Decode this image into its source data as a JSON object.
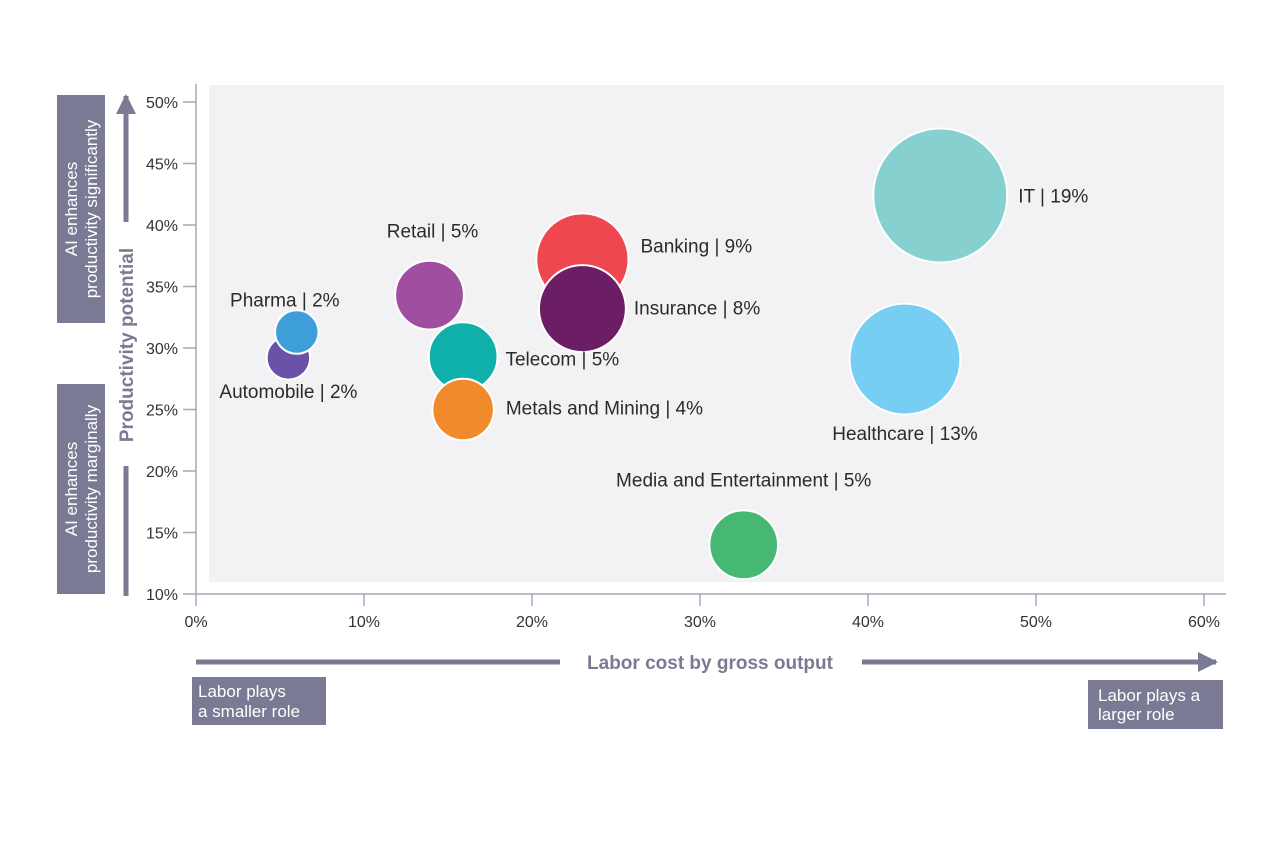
{
  "colors": {
    "plot_bg": "#f2f2f4",
    "axis": "#7b7a94",
    "note_box": "#7b7a94"
  },
  "chart_data": {
    "type": "scatter",
    "xlabel": "Labor cost by gross output",
    "ylabel": "Productivity potential",
    "xlim": [
      0,
      60
    ],
    "ylim": [
      10,
      50
    ],
    "x_ticks": [
      "0%",
      "10%",
      "20%",
      "30%",
      "40%",
      "50%",
      "60%"
    ],
    "y_ticks": [
      "10%",
      "15%",
      "20%",
      "25%",
      "30%",
      "35%",
      "40%",
      "45%",
      "50%"
    ],
    "bubble_size_unit": "percent",
    "points": [
      {
        "label": "Automobile | 2%",
        "x": 5.5,
        "y": 29.2,
        "size": 2,
        "color": "#6a52a8"
      },
      {
        "label": "Pharma | 2%",
        "x": 6.0,
        "y": 31.3,
        "size": 2,
        "color": "#3d9ed9"
      },
      {
        "label": "Retail | 5%",
        "x": 13.9,
        "y": 34.3,
        "size": 5,
        "color": "#a04fa0"
      },
      {
        "label": "Telecom | 5%",
        "x": 15.9,
        "y": 29.3,
        "size": 5,
        "color": "#0fb0aa"
      },
      {
        "label": "Metals and Mining | 4%",
        "x": 15.9,
        "y": 25.0,
        "size": 4,
        "color": "#f08a2a"
      },
      {
        "label": "Banking | 9%",
        "x": 23.0,
        "y": 37.2,
        "size": 9,
        "color": "#ef4750"
      },
      {
        "label": "Insurance | 8%",
        "x": 23.0,
        "y": 33.2,
        "size": 8,
        "color": "#6b1e63"
      },
      {
        "label": "Media and Entertainment | 5%",
        "x": 32.6,
        "y": 14.0,
        "size": 5,
        "color": "#46b874"
      },
      {
        "label": "Healthcare | 13%",
        "x": 42.2,
        "y": 29.1,
        "size": 13,
        "color": "#76cef2"
      },
      {
        "label": "IT | 19%",
        "x": 44.3,
        "y": 42.4,
        "size": 19,
        "color": "#86d0d0"
      }
    ]
  },
  "annotations": {
    "y_upper_lines": [
      "AI enhances",
      "productivity significantly"
    ],
    "y_lower_lines": [
      "AI enhances",
      "productivity marginally"
    ],
    "x_left_lines": [
      "Labor plays",
      "a smaller role"
    ],
    "x_right_lines": [
      "Labor plays a",
      "larger role"
    ]
  }
}
